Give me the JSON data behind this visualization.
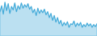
{
  "values": [
    55,
    72,
    48,
    82,
    58,
    78,
    50,
    70,
    60,
    80,
    55,
    72,
    62,
    80,
    65,
    75,
    68,
    78,
    62,
    70,
    52,
    62,
    44,
    65,
    50,
    60,
    52,
    62,
    46,
    55,
    38,
    50,
    30,
    44,
    25,
    38,
    20,
    30,
    14,
    24,
    16,
    26,
    10,
    20,
    18,
    28,
    12,
    22,
    15,
    24,
    10,
    18,
    12,
    22,
    14,
    20,
    10,
    18,
    12,
    20
  ],
  "line_color": "#3da8d8",
  "fill_color": "#3da8d8",
  "fill_alpha": 0.35,
  "bg_color": "#ffffff",
  "ylim_min": -15
}
